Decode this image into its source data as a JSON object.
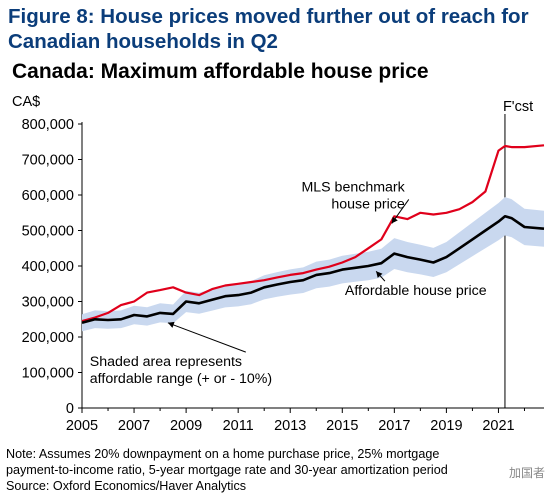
{
  "figure_title": "Figure 8: House prices moved further out of reach for Canadian households in Q2",
  "notes": [
    "Note: Assumes 20% downpayment on a home purchase price, 25% mortgage",
    "payment-to-income ratio, 5-year mortgage rate and 30-year amortization period",
    "Source: Oxford Economics/Haver Analytics"
  ],
  "watermark": "加国者",
  "colors": {
    "title": "#0b3d7a",
    "band": "#c9d8ef",
    "mls": "#e0001b",
    "affordable": "#000000"
  },
  "chart_data": {
    "type": "line",
    "title": "Canada: Maximum affordable house price",
    "ylabel": "CA$",
    "xlim": [
      2005,
      2022.75
    ],
    "ylim": [
      0,
      800000
    ],
    "yticks": [
      0,
      100000,
      200000,
      300000,
      400000,
      500000,
      600000,
      700000,
      800000
    ],
    "ytick_labels": [
      "0",
      "100,000",
      "200,000",
      "300,000",
      "400,000",
      "500,000",
      "600,000",
      "700,000",
      "800,000"
    ],
    "xticks": [
      2005,
      2007,
      2009,
      2011,
      2013,
      2015,
      2017,
      2019,
      2021
    ],
    "xtick_labels": [
      "2005",
      "2007",
      "2009",
      "2011",
      "2013",
      "2015",
      "2017",
      "2019",
      "2021"
    ],
    "forecast_start": 2021.25,
    "forecast_label": "F'cst",
    "series": [
      {
        "name": "MLS benchmark house price",
        "color": "#e0001b",
        "points": [
          [
            2005.0,
            245000
          ],
          [
            2005.5,
            255000
          ],
          [
            2006.0,
            268000
          ],
          [
            2006.5,
            290000
          ],
          [
            2007.0,
            300000
          ],
          [
            2007.5,
            325000
          ],
          [
            2008.0,
            332000
          ],
          [
            2008.5,
            340000
          ],
          [
            2009.0,
            325000
          ],
          [
            2009.5,
            318000
          ],
          [
            2010.0,
            335000
          ],
          [
            2010.5,
            345000
          ],
          [
            2011.0,
            350000
          ],
          [
            2011.5,
            355000
          ],
          [
            2012.0,
            360000
          ],
          [
            2012.5,
            368000
          ],
          [
            2013.0,
            375000
          ],
          [
            2013.5,
            380000
          ],
          [
            2014.0,
            390000
          ],
          [
            2014.5,
            398000
          ],
          [
            2015.0,
            410000
          ],
          [
            2015.5,
            425000
          ],
          [
            2016.0,
            450000
          ],
          [
            2016.5,
            475000
          ],
          [
            2017.0,
            540000
          ],
          [
            2017.5,
            532000
          ],
          [
            2018.0,
            550000
          ],
          [
            2018.5,
            545000
          ],
          [
            2019.0,
            550000
          ],
          [
            2019.5,
            560000
          ],
          [
            2020.0,
            580000
          ],
          [
            2020.5,
            610000
          ],
          [
            2021.0,
            725000
          ],
          [
            2021.25,
            738000
          ],
          [
            2021.5,
            735000
          ],
          [
            2022.0,
            735000
          ],
          [
            2022.75,
            740000
          ]
        ]
      },
      {
        "name": "Affordable house price",
        "color": "#000000",
        "band_pct": 10,
        "points": [
          [
            2005.0,
            240000
          ],
          [
            2005.5,
            250000
          ],
          [
            2006.0,
            248000
          ],
          [
            2006.5,
            250000
          ],
          [
            2007.0,
            262000
          ],
          [
            2007.5,
            258000
          ],
          [
            2008.0,
            268000
          ],
          [
            2008.5,
            265000
          ],
          [
            2009.0,
            300000
          ],
          [
            2009.5,
            295000
          ],
          [
            2010.0,
            305000
          ],
          [
            2010.5,
            315000
          ],
          [
            2011.0,
            318000
          ],
          [
            2011.5,
            325000
          ],
          [
            2012.0,
            340000
          ],
          [
            2012.5,
            348000
          ],
          [
            2013.0,
            355000
          ],
          [
            2013.5,
            360000
          ],
          [
            2014.0,
            375000
          ],
          [
            2014.5,
            380000
          ],
          [
            2015.0,
            390000
          ],
          [
            2015.5,
            395000
          ],
          [
            2016.0,
            400000
          ],
          [
            2016.5,
            408000
          ],
          [
            2017.0,
            435000
          ],
          [
            2017.5,
            425000
          ],
          [
            2018.0,
            418000
          ],
          [
            2018.5,
            410000
          ],
          [
            2019.0,
            425000
          ],
          [
            2019.5,
            450000
          ],
          [
            2020.0,
            475000
          ],
          [
            2020.5,
            500000
          ],
          [
            2021.0,
            525000
          ],
          [
            2021.25,
            540000
          ],
          [
            2021.5,
            535000
          ],
          [
            2022.0,
            510000
          ],
          [
            2022.75,
            505000
          ]
        ]
      }
    ],
    "annotations": [
      {
        "text_lines": [
          "MLS benchmark",
          "house price"
        ],
        "text_at": [
          2017.4,
          610000
        ],
        "arrow_to": [
          2016.9,
          520000
        ],
        "anchor": "end"
      },
      {
        "text_lines": [
          "Affordable house price"
        ],
        "text_at": [
          2015.1,
          318000
        ],
        "arrow_to": [
          2016.3,
          385000
        ],
        "anchor": "start"
      },
      {
        "text_lines": [
          "Shaded area represents",
          "affordable range (+ or - 10%)"
        ],
        "text_at": [
          2005.3,
          118000
        ],
        "arrow_to": [
          2008.3,
          240000
        ],
        "anchor": "start"
      }
    ]
  }
}
